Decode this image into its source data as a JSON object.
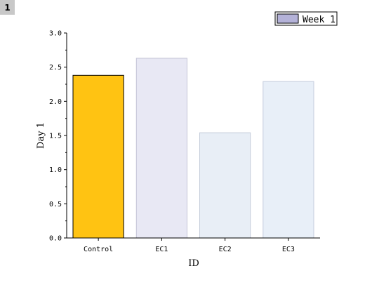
{
  "layer_badge": "1",
  "chart_data": {
    "type": "bar",
    "categories": [
      "Control",
      "EC1",
      "EC2",
      "EC3"
    ],
    "values": [
      2.38,
      2.63,
      1.54,
      2.29
    ],
    "xlabel": "ID",
    "ylabel": "Day 1",
    "ylim": [
      0,
      3.0
    ],
    "yticks": [
      "0.0",
      "0.5",
      "1.0",
      "1.5",
      "2.0",
      "2.5",
      "3.0"
    ],
    "legend": {
      "label": "Week 1",
      "color": "#b4b2d8",
      "placement": "top-right"
    },
    "bar_colors": [
      "#ffc312",
      "#e8e8f4",
      "#e8eef6",
      "#e8eff8"
    ],
    "bar_edges": [
      "#000000",
      "#c4c4d6",
      "#c4ccda",
      "#c4ccdc"
    ],
    "grid": false
  }
}
